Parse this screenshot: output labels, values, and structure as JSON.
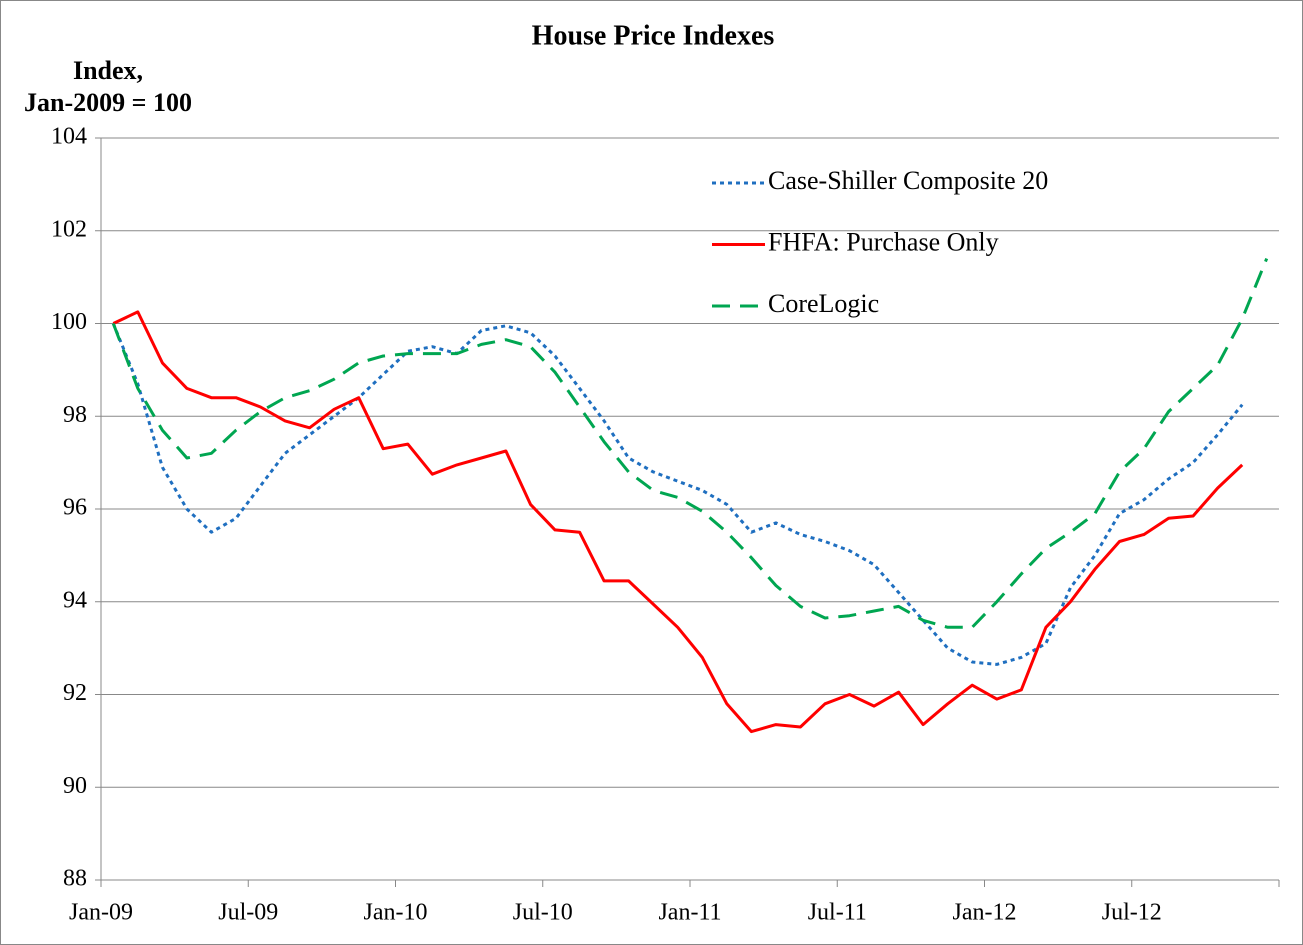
{
  "chart_data": {
    "type": "line",
    "title": "House Price Indexes",
    "y_label": [
      "Index,",
      "Jan-2009 = 100"
    ],
    "categories": [
      "Jan-09",
      null,
      null,
      null,
      null,
      null,
      "Jul-09",
      null,
      null,
      null,
      null,
      null,
      "Jan-10",
      null,
      null,
      null,
      null,
      null,
      "Jul-10",
      null,
      null,
      null,
      null,
      null,
      "Jan-11",
      null,
      null,
      null,
      null,
      null,
      "Jul-11",
      null,
      null,
      null,
      null,
      null,
      "Jan-12",
      null,
      null,
      null,
      null,
      null,
      "Jul-12",
      null,
      null,
      null,
      null,
      null
    ],
    "series": [
      {
        "name": "Case-Shiller Composite 20",
        "color": "#1f6fc0",
        "dash": "dotted",
        "values": [
          100,
          98.7,
          96.9,
          96.0,
          95.5,
          95.8,
          96.5,
          97.2,
          97.6,
          98.0,
          98.4,
          98.9,
          99.4,
          99.5,
          99.35,
          99.85,
          99.95,
          99.8,
          99.3,
          98.6,
          97.9,
          97.1,
          96.8,
          96.6,
          96.4,
          96.1,
          95.5,
          95.7,
          95.45,
          95.3,
          95.1,
          94.8,
          94.2,
          93.6,
          93.0,
          92.7,
          92.65,
          92.8,
          93.1,
          94.3,
          95.0,
          95.9,
          96.2,
          96.65,
          97.0,
          97.6,
          98.25,
          null
        ]
      },
      {
        "name": "FHFA: Purchase Only",
        "color": "#ff0000",
        "dash": "solid",
        "values": [
          100,
          100.25,
          99.15,
          98.6,
          98.4,
          98.4,
          98.2,
          97.9,
          97.75,
          98.15,
          98.4,
          97.3,
          97.4,
          96.75,
          96.95,
          97.1,
          97.25,
          96.1,
          95.55,
          95.5,
          94.45,
          94.45,
          93.95,
          93.45,
          92.8,
          91.8,
          91.2,
          91.35,
          91.3,
          91.8,
          92.0,
          91.75,
          92.05,
          91.35,
          91.8,
          92.2,
          91.9,
          92.1,
          93.45,
          94.0,
          94.7,
          95.3,
          95.45,
          95.8,
          95.85,
          96.45,
          96.95,
          null
        ]
      },
      {
        "name": "CoreLogic",
        "color": "#00a651",
        "dash": "dashed",
        "values": [
          100,
          98.6,
          97.7,
          97.1,
          97.2,
          97.7,
          98.1,
          98.4,
          98.55,
          98.8,
          99.15,
          99.3,
          99.35,
          99.35,
          99.35,
          99.55,
          99.65,
          99.5,
          98.95,
          98.2,
          97.45,
          96.8,
          96.4,
          96.25,
          95.95,
          95.5,
          94.95,
          94.35,
          93.9,
          93.65,
          93.7,
          93.8,
          93.9,
          93.6,
          93.45,
          93.45,
          94.0,
          94.6,
          95.15,
          95.5,
          95.9,
          96.8,
          97.3,
          98.1,
          98.6,
          99.1,
          100.1,
          101.4
        ]
      }
    ],
    "ylim": [
      88,
      104
    ],
    "yticks": [
      88,
      90,
      92,
      94,
      96,
      98,
      100,
      102,
      104
    ],
    "grid": true,
    "legend": "upper right"
  }
}
